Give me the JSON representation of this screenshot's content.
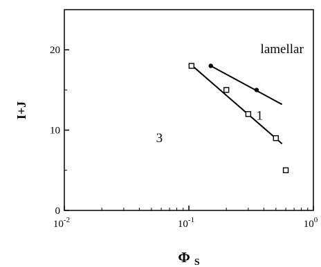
{
  "chart_data": {
    "type": "scatter",
    "title": "",
    "xlabel": "Φ",
    "xlabel_sub": "S",
    "ylabel": "I+J",
    "xscale": "log",
    "xlim": [
      0.01,
      1
    ],
    "ylim": [
      0,
      25
    ],
    "grid": false,
    "x_ticks": [
      {
        "value": 0.01,
        "base": "10",
        "exp": "-2"
      },
      {
        "value": 0.1,
        "base": "10",
        "exp": "-1"
      },
      {
        "value": 1,
        "base": "10",
        "exp": "0"
      }
    ],
    "y_ticks": [
      {
        "value": 0,
        "label": "0"
      },
      {
        "value": 10,
        "label": "10"
      },
      {
        "value": 20,
        "label": "20"
      }
    ],
    "series": [
      {
        "name": "1",
        "marker": "dot",
        "points": [
          {
            "x": 0.15,
            "y": 18
          },
          {
            "x": 0.35,
            "y": 15
          }
        ],
        "fit_line": [
          {
            "x": 0.15,
            "y": 18
          },
          {
            "x": 0.56,
            "y": 13.2
          }
        ]
      },
      {
        "name": "3",
        "marker": "square",
        "points": [
          {
            "x": 0.105,
            "y": 18
          },
          {
            "x": 0.2,
            "y": 15
          },
          {
            "x": 0.3,
            "y": 12
          },
          {
            "x": 0.5,
            "y": 9
          },
          {
            "x": 0.6,
            "y": 5
          }
        ],
        "fit_line": [
          {
            "x": 0.105,
            "y": 18.1
          },
          {
            "x": 0.56,
            "y": 8.3
          }
        ]
      }
    ],
    "annotations": [
      {
        "text": "lamellar",
        "x": 0.56,
        "y": 19.6
      },
      {
        "text": "1",
        "x": 0.37,
        "y": 11.3
      },
      {
        "text": "3",
        "x": 0.058,
        "y": 8.5
      }
    ]
  }
}
